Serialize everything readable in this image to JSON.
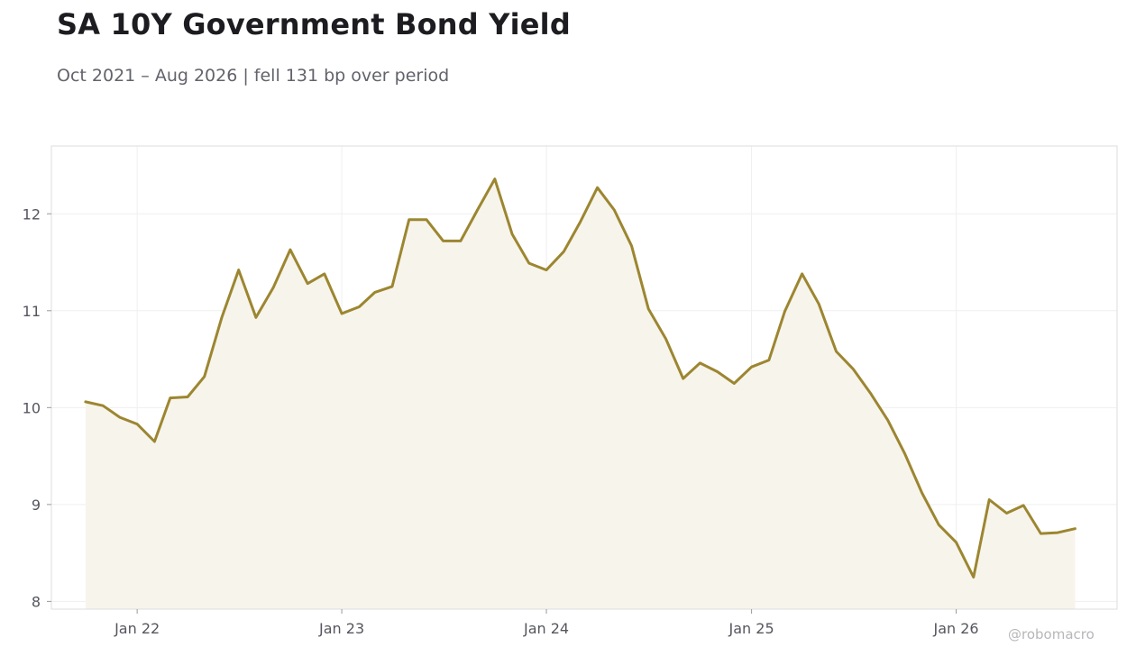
{
  "title": "SA 10Y Government Bond Yield",
  "subtitle": "Oct 2021 – Aug 2026 | fell 131 bp over period",
  "credit": "@robomacro",
  "colors": {
    "line": "#9c8630",
    "fill": "#f7f4ec",
    "grid": "#efefef",
    "frame": "#dedede"
  },
  "chart_data": {
    "type": "area",
    "title": "SA 10Y Government Bond Yield",
    "xlabel": "",
    "ylabel": "",
    "grid": true,
    "legend": "none",
    "ylim": [
      7.92,
      12.7
    ],
    "xlim": [
      "2021-08-01",
      "2026-10-15"
    ],
    "yticks": [
      8,
      9,
      10,
      11,
      12
    ],
    "xticks": [
      {
        "date": "2022-01-01",
        "label": "Jan 22"
      },
      {
        "date": "2023-01-01",
        "label": "Jan 23"
      },
      {
        "date": "2024-01-01",
        "label": "Jan 24"
      },
      {
        "date": "2025-01-01",
        "label": "Jan 25"
      },
      {
        "date": "2026-01-01",
        "label": "Jan 26"
      }
    ],
    "x": [
      "2021-10",
      "2021-11",
      "2021-12",
      "2022-01",
      "2022-02",
      "2022-03",
      "2022-04",
      "2022-05",
      "2022-06",
      "2022-07",
      "2022-08",
      "2022-09",
      "2022-10",
      "2022-11",
      "2022-12",
      "2023-01",
      "2023-02",
      "2023-03",
      "2023-04",
      "2023-05",
      "2023-06",
      "2023-07",
      "2023-08",
      "2023-09",
      "2023-10",
      "2023-11",
      "2023-12",
      "2024-01",
      "2024-02",
      "2024-03",
      "2024-04",
      "2024-05",
      "2024-06",
      "2024-07",
      "2024-08",
      "2024-09",
      "2024-10",
      "2024-11",
      "2024-12",
      "2025-01",
      "2025-02",
      "2025-03",
      "2025-04",
      "2025-05",
      "2025-06",
      "2025-07",
      "2025-08",
      "2025-09",
      "2025-10",
      "2025-11",
      "2025-12",
      "2026-01",
      "2026-02",
      "2026-03",
      "2026-04",
      "2026-05",
      "2026-06",
      "2026-07",
      "2026-08"
    ],
    "values": [
      10.06,
      10.02,
      9.9,
      9.83,
      9.65,
      10.1,
      10.11,
      10.32,
      10.93,
      11.42,
      10.93,
      11.24,
      11.63,
      11.28,
      11.38,
      10.97,
      11.04,
      11.19,
      11.25,
      11.94,
      11.94,
      11.72,
      11.72,
      12.05,
      12.36,
      11.79,
      11.49,
      11.42,
      11.61,
      11.91,
      12.27,
      12.04,
      11.67,
      11.02,
      10.71,
      10.3,
      10.46,
      10.37,
      10.25,
      10.42,
      10.49,
      10.99,
      11.38,
      11.07,
      10.58,
      10.4,
      10.15,
      9.87,
      9.53,
      9.12,
      8.79,
      8.61,
      8.25,
      9.05,
      8.91,
      8.99,
      8.7,
      8.71,
      8.75
    ]
  }
}
